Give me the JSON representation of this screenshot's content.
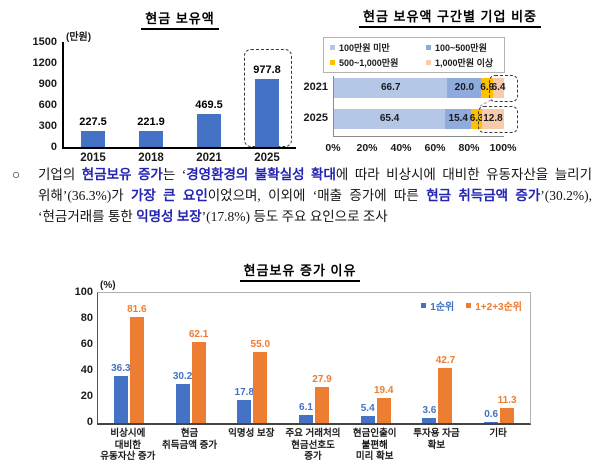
{
  "paragraph": {
    "bullet": "○",
    "segments": [
      {
        "t": "기업의 ",
        "b": false
      },
      {
        "t": "현금보유 증가",
        "b": true
      },
      {
        "t": "는 ‘",
        "b": false
      },
      {
        "t": "경영환경의 불확실성 확대",
        "b": true
      },
      {
        "t": "에 따라 비상시에 대비한 유동자산을 늘리기 위해’(36.3%)가 ",
        "b": false
      },
      {
        "t": "가장 큰 요인",
        "b": true
      },
      {
        "t": "이었으며, 이외에 ‘매출 증가에 따른 ",
        "b": false
      },
      {
        "t": "현금 취득금액 증가",
        "b": true
      },
      {
        "t": "’(30.2%), ‘현금거래를 통한 ",
        "b": false
      },
      {
        "t": "익명성 보장",
        "b": true
      },
      {
        "t": "’(17.8%) 등도 주요 요인으로 조사",
        "b": false
      }
    ]
  },
  "chart_data": [
    {
      "type": "bar",
      "title": "현금 보유액",
      "unit": "(만원)",
      "categories": [
        "2015",
        "2018",
        "2021",
        "2025"
      ],
      "values": [
        227.5,
        221.9,
        469.5,
        977.8
      ],
      "ylim": [
        0,
        1500
      ],
      "y_ticks": [
        0,
        300,
        600,
        900,
        1200,
        1500
      ],
      "highlight_category": "2025",
      "bar_color": "#4472c4",
      "grid": false,
      "legend_position": "none"
    },
    {
      "type": "bar-horizontal-stacked",
      "title": "현금 보유액 구간별 기업 비중",
      "categories": [
        "2021",
        "2025"
      ],
      "series": [
        {
          "name": "100만원 미만",
          "color": "#b4c7e7",
          "values": [
            66.7,
            65.4
          ]
        },
        {
          "name": "100~500만원",
          "color": "#8faadc",
          "values": [
            20.0,
            15.4
          ]
        },
        {
          "name": "500~1,000만원",
          "color": "#ffc000",
          "values": [
            6.9,
            6.3
          ]
        },
        {
          "name": "1,000만원 이상",
          "color": "#f8cbad",
          "values": [
            6.4,
            12.8
          ]
        }
      ],
      "xlim": [
        0,
        100
      ],
      "x_ticks": [
        "0%",
        "20%",
        "40%",
        "60%",
        "80%",
        "100%"
      ],
      "highlight_series": "1,000만원 이상",
      "grid": false,
      "legend_position": "top-box"
    },
    {
      "type": "bar",
      "title": "현금보유 증가 이유",
      "unit": "(%)",
      "categories": [
        [
          "비상시에",
          "대비한",
          "유동자산 증가"
        ],
        [
          "현금",
          "취득금액 증가"
        ],
        [
          "익명성 보장"
        ],
        [
          "주요 거래처의",
          "현금선호도",
          "증가"
        ],
        [
          "현금인출이",
          "불편해",
          "미리 확보"
        ],
        [
          "투자용 자금",
          "확보"
        ],
        [
          "기타"
        ]
      ],
      "series": [
        {
          "name": "1순위",
          "color": "#4472c4",
          "values": [
            36.3,
            30.2,
            17.8,
            6.1,
            5.4,
            3.6,
            0.6
          ]
        },
        {
          "name": "1+2+3순위",
          "color": "#ed7d31",
          "values": [
            81.6,
            62.1,
            55.0,
            27.9,
            19.4,
            42.7,
            11.3
          ]
        }
      ],
      "ylim": [
        0,
        100
      ],
      "y_ticks": [
        0,
        20,
        40,
        60,
        80,
        100
      ],
      "grid": false,
      "legend_position": "top-right"
    }
  ]
}
